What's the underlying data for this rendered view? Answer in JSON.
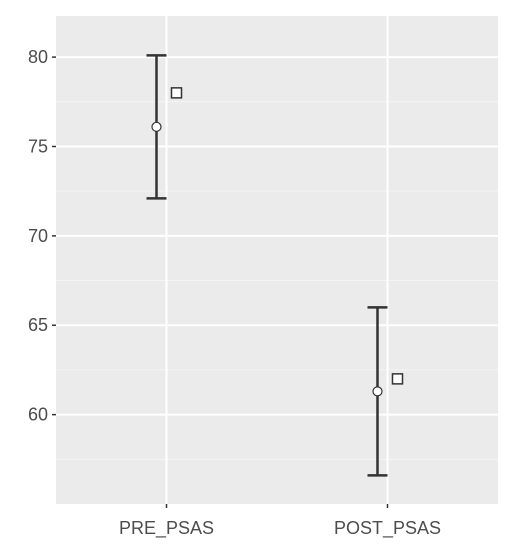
{
  "chart_data": {
    "type": "errorbar",
    "title": "",
    "xlabel": "",
    "ylabel": "",
    "categories": [
      "PRE_PSAS",
      "POST_PSAS"
    ],
    "ylim": [
      55,
      82.3
    ],
    "yticks": [
      60,
      65,
      70,
      75,
      80
    ],
    "ytick_labels": [
      "60",
      "65",
      "70",
      "75",
      "80"
    ],
    "grid": true,
    "series": [
      {
        "marker": "circle-open",
        "mean": [
          76.1,
          61.3
        ],
        "lower": [
          72.1,
          56.6
        ],
        "upper": [
          80.1,
          66.0
        ]
      },
      {
        "marker": "square-open",
        "values": [
          78.0,
          62.0
        ]
      }
    ],
    "colors": {
      "panel_background": "#ebebeb",
      "grid_major": "#ffffff",
      "grid_minor": "#f4f4f4",
      "errorbar": "#333333",
      "marker_fill": "#ffffff",
      "marker_stroke": "#333333",
      "tick_text": "#4d4d4d",
      "tick_mark": "#333333"
    }
  }
}
